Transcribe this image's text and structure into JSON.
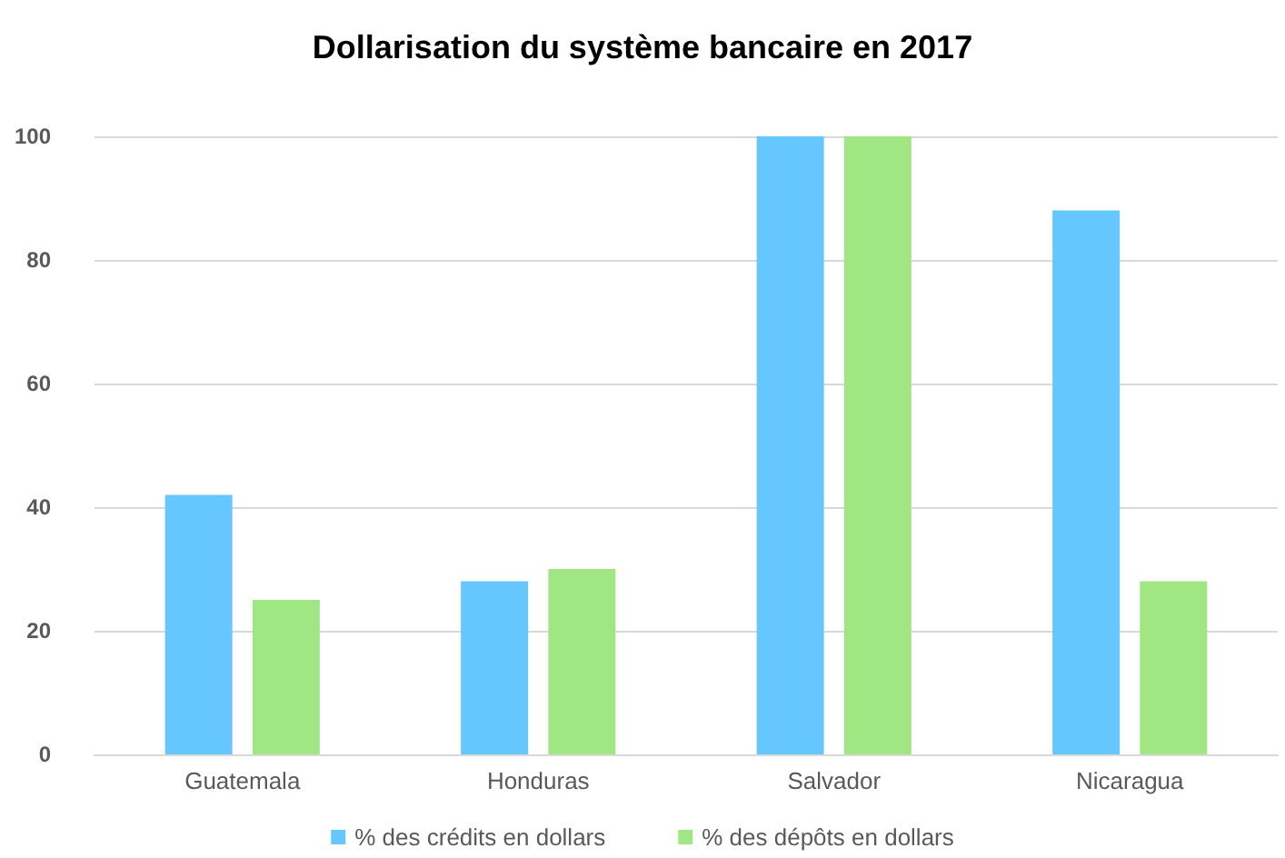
{
  "chart_data": {
    "type": "bar",
    "title": "Dollarisation du système bancaire en 2017",
    "categories": [
      "Guatemala",
      "Honduras",
      "Salvador",
      "Nicaragua"
    ],
    "series": [
      {
        "name": "% des crédits en dollars",
        "color": "#66c7ff",
        "values": [
          42,
          28,
          100,
          88
        ]
      },
      {
        "name": "% des dépôts en dollars",
        "color": "#a0e783",
        "values": [
          25,
          30,
          100,
          28
        ]
      }
    ],
    "ylim": [
      0,
      100
    ],
    "yticks": [
      0,
      20,
      40,
      60,
      80,
      100
    ],
    "grid": "y",
    "legend": "bottom"
  }
}
